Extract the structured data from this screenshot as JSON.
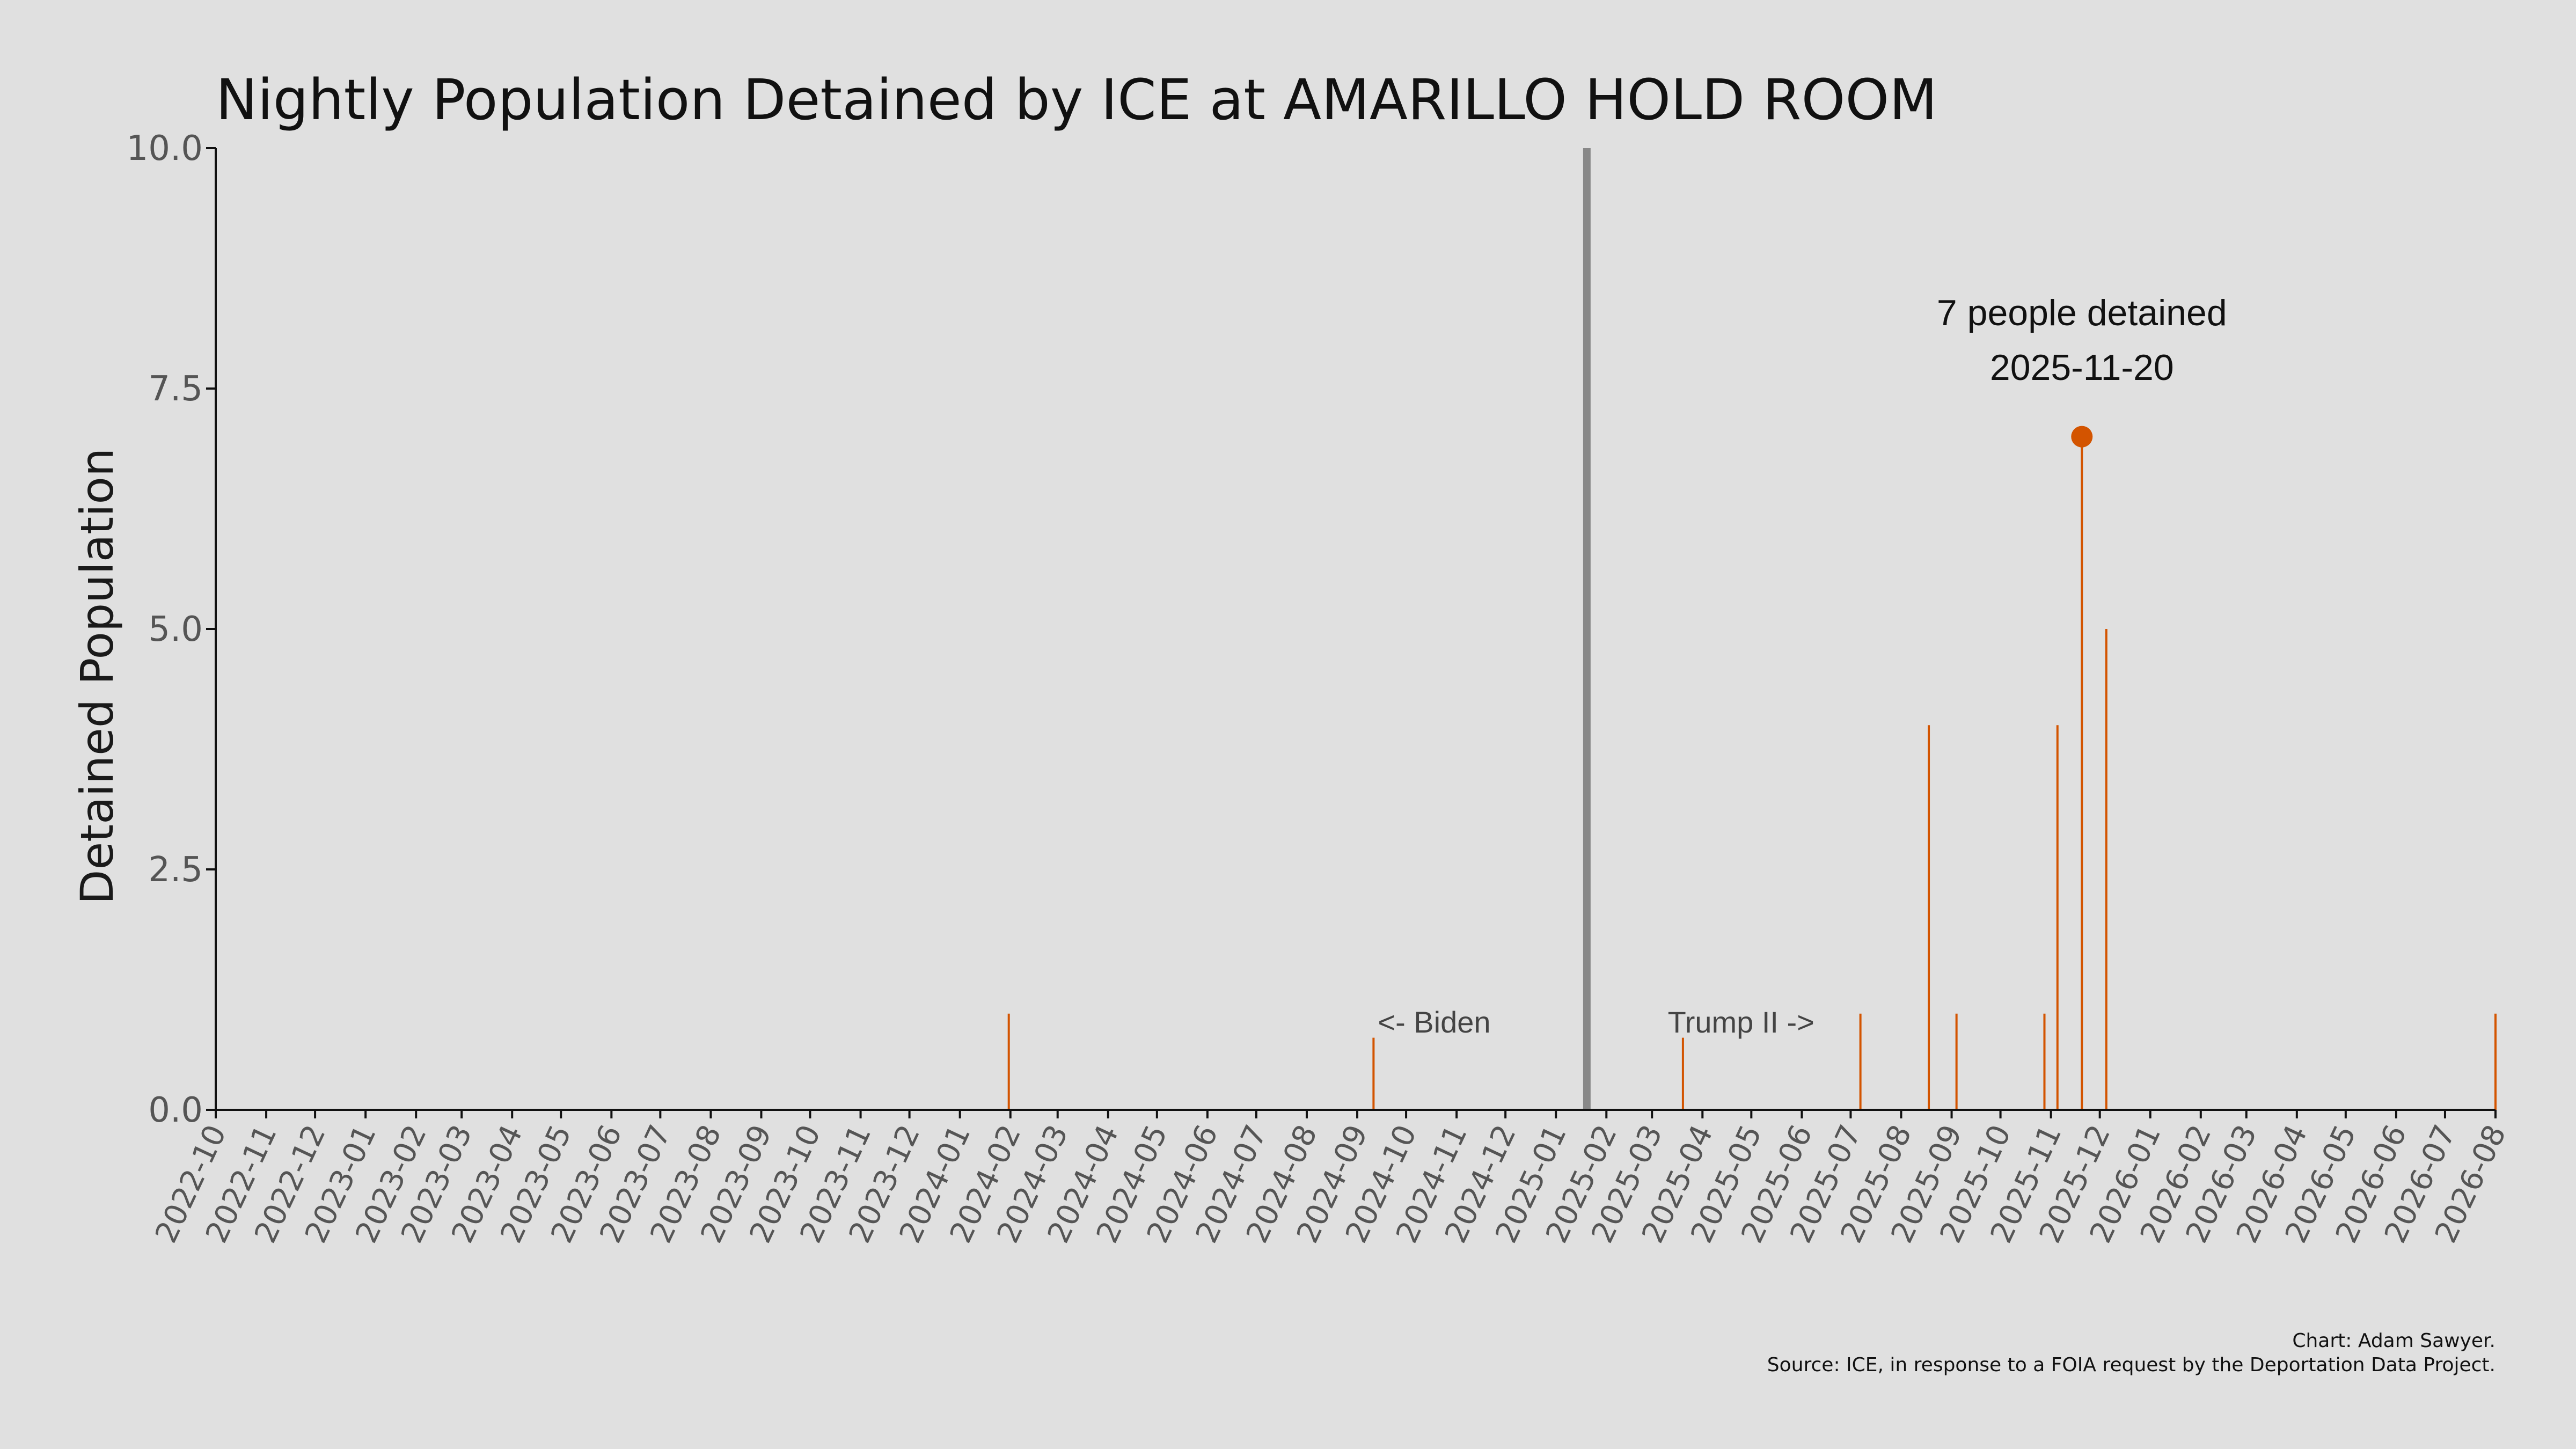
{
  "chart_data": {
    "type": "bar",
    "title": "Nightly Population Detained by ICE at AMARILLO HOLD ROOM",
    "xlabel": "",
    "ylabel": "Detained Population",
    "ylim": [
      0,
      10
    ],
    "yticks": [
      "0.0",
      "2.5",
      "5.0",
      "7.5",
      "10.0"
    ],
    "ytick_values": [
      0,
      2.5,
      5,
      7.5,
      10
    ],
    "grid": false,
    "xlim": [
      "2022-10-01",
      "2026-08-01"
    ],
    "xticks": [
      "2022-10",
      "2022-11",
      "2022-12",
      "2023-01",
      "2023-02",
      "2023-03",
      "2023-04",
      "2023-05",
      "2023-06",
      "2023-07",
      "2023-08",
      "2023-09",
      "2023-10",
      "2023-11",
      "2023-12",
      "2024-01",
      "2024-02",
      "2024-03",
      "2024-04",
      "2024-05",
      "2024-06",
      "2024-07",
      "2024-08",
      "2024-09",
      "2024-10",
      "2024-11",
      "2024-12",
      "2025-01",
      "2025-02",
      "2025-03",
      "2025-04",
      "2025-05",
      "2025-06",
      "2025-07",
      "2025-08",
      "2025-09",
      "2025-10",
      "2025-11",
      "2025-12",
      "2026-01",
      "2026-02",
      "2026-03",
      "2026-04",
      "2026-05",
      "2026-06",
      "2026-07",
      "2026-08"
    ],
    "series": [
      {
        "color": "#d35400",
        "points": [
          {
            "x": "2024-01-31",
            "y": 1
          },
          {
            "x": "2024-09-11",
            "y": 0.75
          },
          {
            "x": "2025-03-20",
            "y": 0.75
          },
          {
            "x": "2025-07-07",
            "y": 1
          },
          {
            "x": "2025-08-18",
            "y": 4
          },
          {
            "x": "2025-09-04",
            "y": 1
          },
          {
            "x": "2025-10-28",
            "y": 1
          },
          {
            "x": "2025-11-05",
            "y": 4
          },
          {
            "x": "2025-11-20",
            "y": 7
          },
          {
            "x": "2025-12-05",
            "y": 5
          },
          {
            "x": "2026-08-01",
            "y": 1
          }
        ]
      }
    ],
    "vline": {
      "x": "2025-01-20",
      "color": "#888888"
    },
    "annotations": [
      {
        "text": "<- Biden",
        "x": "2024-09-11",
        "y": 0.95
      },
      {
        "text": "Trump II ->",
        "x": "2025-03-20",
        "y": 0.95
      }
    ],
    "peak": {
      "x": "2025-11-20",
      "y": 7,
      "label_line1": "7 people detained",
      "label_line2": "2025-11-20",
      "color": "#d35400"
    },
    "caption_line1": "Chart: Adam Sawyer.",
    "caption_line2": "Source: ICE, in response to a FOIA request by the Deportation Data Project."
  }
}
